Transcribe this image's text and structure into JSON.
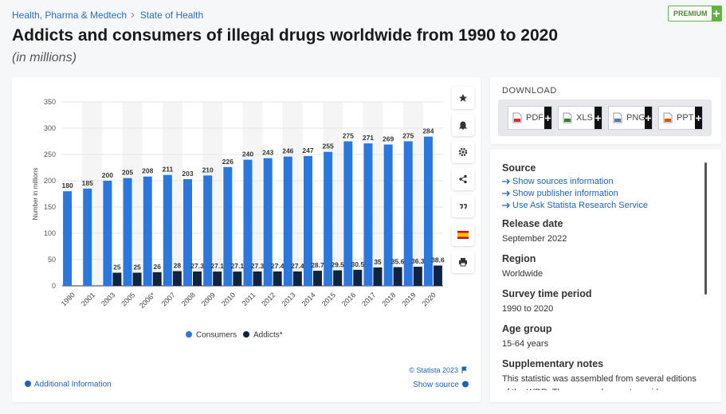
{
  "header": {
    "breadcrumb": [
      "Health, Pharma & Medtech",
      "State of Health"
    ],
    "badge": "PREMIUM",
    "title": "Addicts and consumers of illegal drugs worldwide from 1990 to 2020",
    "subtitle": "(in millions)"
  },
  "chart_data": {
    "type": "bar",
    "y_label": "Number in millions",
    "categories": [
      "1990",
      "2001",
      "2003",
      "2005",
      "2006*",
      "2007",
      "2008",
      "2009",
      "2010",
      "2011",
      "2012",
      "2013",
      "2014",
      "2015",
      "2016",
      "2017",
      "2018",
      "2019",
      "2020"
    ],
    "series": [
      {
        "name": "Consumers",
        "color": "#2a77dd",
        "values": [
          180,
          185,
          200,
          205,
          208,
          211,
          203,
          210,
          226,
          240,
          243,
          246,
          247,
          255,
          275,
          271,
          269,
          275,
          284
        ]
      },
      {
        "name": "Addicts*",
        "color": "#0e2440",
        "values": [
          null,
          null,
          25,
          25,
          26,
          28,
          27.3,
          27.1,
          27.1,
          27.3,
          27.4,
          27.4,
          28.7,
          29.5,
          30.5,
          35,
          35.6,
          36.3,
          38.6
        ]
      }
    ],
    "ylim": [
      0,
      350
    ],
    "yticks": [
      0,
      50,
      100,
      150,
      200,
      250,
      300,
      350
    ],
    "grid": true,
    "legend": "bottom",
    "copyright": "© Statista 2023"
  },
  "footer": {
    "additional": "Additional Information",
    "show_source": "Show source"
  },
  "download": {
    "title": "DOWNLOAD",
    "buttons": [
      "PDF",
      "XLS",
      "PNG",
      "PPT"
    ]
  },
  "details": {
    "source_title": "Source",
    "source_links": [
      "Show sources information",
      "Show publisher information",
      "Use Ask Statista Research Service"
    ],
    "items": [
      {
        "label": "Release date",
        "value": "September 2022"
      },
      {
        "label": "Region",
        "value": "Worldwide"
      },
      {
        "label": "Survey time period",
        "value": "1990 to 2020"
      },
      {
        "label": "Age group",
        "value": "15-64 years"
      },
      {
        "label": "Supplementary notes",
        "value": "This statistic was assembled from several editions of the WDR. The source does not provide any"
      }
    ]
  }
}
